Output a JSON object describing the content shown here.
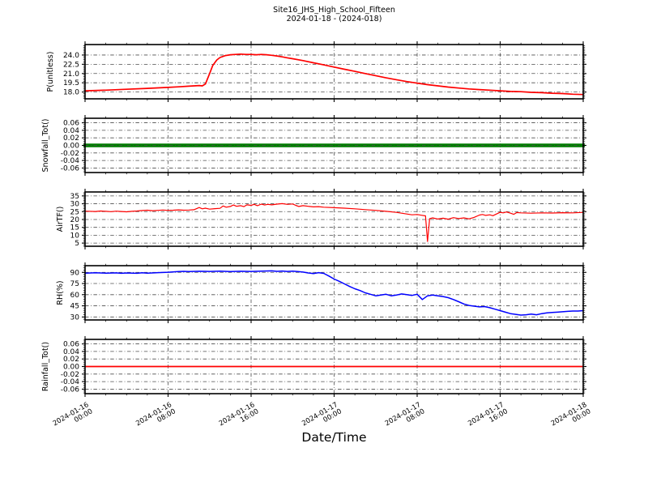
{
  "title": "Site16_JHS_High_School_Fifteen",
  "subtitle": "2024-01-18 - (2024-018)",
  "xlabel": "Date/Time",
  "chart_data": {
    "type": "line",
    "title": "Site16_JHS_High_School_Fifteen",
    "subtitle": "2024-01-18 - (2024-018)",
    "xlabel": "Date/Time",
    "grid": {
      "style": "dash-dot",
      "on": true
    },
    "x_axis": {
      "unit": "hours since 2024-01-16 00:00",
      "range": [
        0,
        48
      ],
      "major_tick_hours": [
        0,
        8,
        16,
        24,
        32,
        40,
        48
      ],
      "minor_tick_step_hours": 2,
      "tick_labels": [
        {
          "date": "2024-01-16",
          "time": "00:00"
        },
        {
          "date": "2024-01-16",
          "time": "08:00"
        },
        {
          "date": "2024-01-16",
          "time": "16:00"
        },
        {
          "date": "2024-01-17",
          "time": "00:00"
        },
        {
          "date": "2024-01-17",
          "time": "08:00"
        },
        {
          "date": "2024-01-17",
          "time": "16:00"
        },
        {
          "date": "2024-01-18",
          "time": "00:00"
        }
      ]
    },
    "panels": [
      {
        "name": "p-unitless",
        "ylabel": "P(unitless)",
        "line_color": "#ff0000",
        "line_width": 1.7,
        "ylim": [
          16.9,
          25.7
        ],
        "yticks": [
          18.0,
          19.5,
          21.0,
          22.5,
          24.0
        ],
        "ytick_labels": [
          "18.0",
          "19.5",
          "21.0",
          "22.5",
          "24.0"
        ],
        "y_minor_step": 0.25,
        "points": [
          [
            0,
            18.2
          ],
          [
            2,
            18.3
          ],
          [
            4,
            18.45
          ],
          [
            6,
            18.6
          ],
          [
            8,
            18.75
          ],
          [
            9,
            18.85
          ],
          [
            10,
            18.95
          ],
          [
            10.5,
            19.0
          ],
          [
            11,
            19.05
          ],
          [
            11.3,
            19.0
          ],
          [
            11.6,
            19.3
          ],
          [
            12,
            21.0
          ],
          [
            12.3,
            22.3
          ],
          [
            12.7,
            23.2
          ],
          [
            13,
            23.6
          ],
          [
            13.5,
            23.9
          ],
          [
            14,
            24.05
          ],
          [
            14.5,
            24.1
          ],
          [
            15,
            24.15
          ],
          [
            15.5,
            24.1
          ],
          [
            16,
            24.1
          ],
          [
            16.5,
            24.05
          ],
          [
            17,
            24.1
          ],
          [
            17.5,
            24.05
          ],
          [
            18,
            23.95
          ],
          [
            18.5,
            23.85
          ],
          [
            19,
            23.7
          ],
          [
            19.5,
            23.55
          ],
          [
            20,
            23.4
          ],
          [
            21,
            23.1
          ],
          [
            22,
            22.75
          ],
          [
            23,
            22.4
          ],
          [
            24,
            22.05
          ],
          [
            25,
            21.7
          ],
          [
            26,
            21.35
          ],
          [
            27,
            21.0
          ],
          [
            28,
            20.65
          ],
          [
            29,
            20.3
          ],
          [
            30,
            20.0
          ],
          [
            31,
            19.7
          ],
          [
            32,
            19.45
          ],
          [
            33,
            19.2
          ],
          [
            34,
            19.0
          ],
          [
            35,
            18.8
          ],
          [
            36,
            18.65
          ],
          [
            37,
            18.5
          ],
          [
            38,
            18.4
          ],
          [
            39,
            18.3
          ],
          [
            40,
            18.2
          ],
          [
            41,
            18.1
          ],
          [
            42,
            18.05
          ],
          [
            43,
            17.95
          ],
          [
            44,
            17.9
          ],
          [
            45,
            17.8
          ],
          [
            46,
            17.75
          ],
          [
            47,
            17.65
          ],
          [
            48,
            17.6
          ]
        ]
      },
      {
        "name": "snowfall",
        "ylabel": "Snowfall_Tot()",
        "line_color": "#007d00",
        "line_width": 4.5,
        "ylim": [
          -0.072,
          0.072
        ],
        "yticks": [
          -0.06,
          -0.04,
          -0.02,
          0.0,
          0.02,
          0.04,
          0.06
        ],
        "ytick_labels": [
          "-0.06",
          "-0.04",
          "-0.02",
          "0.00",
          "0.02",
          "0.04",
          "0.06"
        ],
        "y_minor_step": 0.005,
        "grid_over_line": true,
        "points": [
          [
            0,
            0
          ],
          [
            48,
            0
          ]
        ]
      },
      {
        "name": "airtf",
        "ylabel": "AirTF()",
        "line_color": "#ff0000",
        "line_width": 1.2,
        "ylim": [
          3,
          37.5
        ],
        "yticks": [
          5,
          10,
          15,
          20,
          25,
          30,
          35
        ],
        "ytick_labels": [
          "5",
          "10",
          "15",
          "20",
          "25",
          "30",
          "35"
        ],
        "y_minor_step": 1,
        "points": [
          [
            0,
            25.3
          ],
          [
            1,
            25.1
          ],
          [
            1.5,
            25.4
          ],
          [
            2,
            25.2
          ],
          [
            2.5,
            25.0
          ],
          [
            3,
            25.3
          ],
          [
            3.5,
            25.1
          ],
          [
            4,
            24.9
          ],
          [
            4.5,
            25.2
          ],
          [
            5,
            25.4
          ],
          [
            5.5,
            25.7
          ],
          [
            6,
            25.9
          ],
          [
            6.5,
            25.6
          ],
          [
            7,
            25.8
          ],
          [
            7.5,
            26.0
          ],
          [
            8,
            25.8
          ],
          [
            8.5,
            25.9
          ],
          [
            9,
            26.1
          ],
          [
            9.5,
            25.9
          ],
          [
            10,
            26.0
          ],
          [
            10.5,
            26.2
          ],
          [
            11,
            27.6
          ],
          [
            11.3,
            26.8
          ],
          [
            11.6,
            27.2
          ],
          [
            12,
            26.6
          ],
          [
            12.5,
            26.9
          ],
          [
            13,
            27.1
          ],
          [
            13.3,
            28.6
          ],
          [
            13.6,
            27.8
          ],
          [
            14,
            28.3
          ],
          [
            14.3,
            29.2
          ],
          [
            14.6,
            28.4
          ],
          [
            15,
            28.8
          ],
          [
            15.3,
            28.2
          ],
          [
            15.6,
            29.3
          ],
          [
            16,
            29.0
          ],
          [
            16.3,
            29.6
          ],
          [
            16.6,
            28.8
          ],
          [
            17,
            29.8
          ],
          [
            17.3,
            29.2
          ],
          [
            17.6,
            29.6
          ],
          [
            18,
            29.3
          ],
          [
            18.5,
            29.8
          ],
          [
            19,
            30.1
          ],
          [
            19.5,
            29.6
          ],
          [
            20,
            29.9
          ],
          [
            20.3,
            29.0
          ],
          [
            20.6,
            28.3
          ],
          [
            21,
            28.8
          ],
          [
            21.5,
            28.4
          ],
          [
            22,
            28.0
          ],
          [
            22.5,
            28.2
          ],
          [
            23,
            27.8
          ],
          [
            24,
            27.5
          ],
          [
            25,
            27.2
          ],
          [
            26,
            26.8
          ],
          [
            27,
            26.3
          ],
          [
            28,
            25.8
          ],
          [
            29,
            25.2
          ],
          [
            30,
            24.5
          ],
          [
            30.5,
            24.0
          ],
          [
            31,
            23.5
          ],
          [
            31.5,
            23.0
          ],
          [
            32,
            23.2
          ],
          [
            32.4,
            22.7
          ],
          [
            32.8,
            22.3
          ],
          [
            33,
            6.0
          ],
          [
            33.2,
            20.5
          ],
          [
            33.5,
            21.0
          ],
          [
            34,
            20.3
          ],
          [
            34.5,
            20.8
          ],
          [
            35,
            20.2
          ],
          [
            35.5,
            21.2
          ],
          [
            36,
            20.6
          ],
          [
            36.5,
            21.0
          ],
          [
            37,
            20.4
          ],
          [
            37.5,
            21.4
          ],
          [
            38,
            22.8
          ],
          [
            38.3,
            23.2
          ],
          [
            38.6,
            22.6
          ],
          [
            39,
            23.0
          ],
          [
            39.3,
            22.4
          ],
          [
            39.6,
            23.4
          ],
          [
            40,
            24.6
          ],
          [
            40.3,
            24.2
          ],
          [
            40.6,
            24.8
          ],
          [
            41,
            24.0
          ],
          [
            41.3,
            23.3
          ],
          [
            41.6,
            24.4
          ],
          [
            42,
            24.2
          ],
          [
            43,
            24.0
          ],
          [
            44,
            24.2
          ],
          [
            45,
            24.1
          ],
          [
            46,
            24.3
          ],
          [
            47,
            24.2
          ],
          [
            48,
            24.5
          ]
        ]
      },
      {
        "name": "rh",
        "ylabel": "RH(%)",
        "line_color": "#0000ff",
        "line_width": 1.5,
        "ylim": [
          26,
          99
        ],
        "yticks": [
          30,
          45,
          60,
          75,
          90
        ],
        "ytick_labels": [
          "30",
          "45",
          "60",
          "75",
          "90"
        ],
        "y_minor_step": 3,
        "points": [
          [
            0,
            89
          ],
          [
            1,
            89.5
          ],
          [
            2,
            89
          ],
          [
            3,
            89.3
          ],
          [
            3.5,
            88.8
          ],
          [
            4,
            89.2
          ],
          [
            5,
            88.8
          ],
          [
            5.5,
            89.4
          ],
          [
            6,
            89.0
          ],
          [
            7,
            89.6
          ],
          [
            8,
            90.2
          ],
          [
            9,
            91.0
          ],
          [
            9.5,
            91.4
          ],
          [
            10,
            91.2
          ],
          [
            11,
            91.5
          ],
          [
            12,
            91.3
          ],
          [
            13,
            91.6
          ],
          [
            14,
            91.2
          ],
          [
            15,
            91.5
          ],
          [
            16,
            91.3
          ],
          [
            17,
            91.6
          ],
          [
            18,
            92.0
          ],
          [
            18.5,
            91.4
          ],
          [
            19,
            91.8
          ],
          [
            19.5,
            91.3
          ],
          [
            20,
            91.6
          ],
          [
            20.5,
            91.0
          ],
          [
            21,
            90.4
          ],
          [
            21.5,
            89.2
          ],
          [
            22,
            88.4
          ],
          [
            22.5,
            89.6
          ],
          [
            23,
            88.6
          ],
          [
            23.5,
            85.0
          ],
          [
            24,
            81.0
          ],
          [
            24.5,
            78.0
          ],
          [
            25,
            74.5
          ],
          [
            25.5,
            71.0
          ],
          [
            26,
            68.0
          ],
          [
            26.5,
            65.5
          ],
          [
            27,
            62.5
          ],
          [
            27.5,
            60.5
          ],
          [
            28,
            58.5
          ],
          [
            28.5,
            59.5
          ],
          [
            29,
            60.5
          ],
          [
            29.5,
            58.5
          ],
          [
            30,
            59.5
          ],
          [
            30.5,
            61.0
          ],
          [
            31,
            60.0
          ],
          [
            31.5,
            59.0
          ],
          [
            32,
            60.5
          ],
          [
            32.5,
            53.5
          ],
          [
            33,
            58.5
          ],
          [
            33.5,
            59.5
          ],
          [
            34,
            58.5
          ],
          [
            34.5,
            57.5
          ],
          [
            35,
            56.0
          ],
          [
            35.5,
            53.5
          ],
          [
            36,
            50.5
          ],
          [
            36.5,
            47.5
          ],
          [
            37,
            45.5
          ],
          [
            37.5,
            44.5
          ],
          [
            38,
            43.5
          ],
          [
            38.5,
            44.0
          ],
          [
            39,
            42.5
          ],
          [
            39.5,
            40.5
          ],
          [
            40,
            38.5
          ],
          [
            40.5,
            36.5
          ],
          [
            41,
            34.5
          ],
          [
            41.5,
            33.5
          ],
          [
            42,
            32.5
          ],
          [
            42.5,
            33.0
          ],
          [
            43,
            34.0
          ],
          [
            43.5,
            33.0
          ],
          [
            44,
            34.5
          ],
          [
            44.5,
            35.5
          ],
          [
            45,
            36.0
          ],
          [
            45.5,
            36.5
          ],
          [
            46,
            37.0
          ],
          [
            46.5,
            37.5
          ],
          [
            47,
            38.0
          ],
          [
            47.5,
            38.0
          ],
          [
            48,
            38.5
          ]
        ]
      },
      {
        "name": "rainfall",
        "ylabel": "Rainfall_Tot()",
        "line_color": "#ff0000",
        "line_width": 1.7,
        "ylim": [
          -0.072,
          0.072
        ],
        "yticks": [
          -0.06,
          -0.04,
          -0.02,
          0.0,
          0.02,
          0.04,
          0.06
        ],
        "ytick_labels": [
          "-0.06",
          "-0.04",
          "-0.02",
          "0.00",
          "0.02",
          "0.04",
          "0.06"
        ],
        "y_minor_step": 0.005,
        "points": [
          [
            0,
            0
          ],
          [
            48,
            0
          ]
        ]
      }
    ]
  }
}
